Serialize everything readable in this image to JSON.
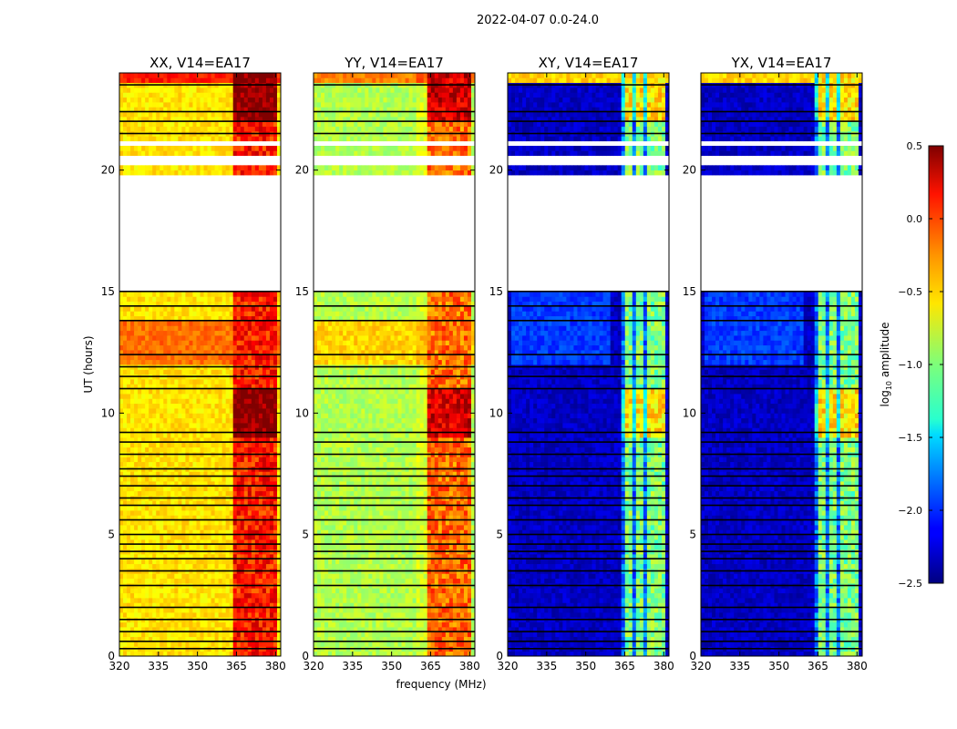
{
  "figure_title": "2022-04-07 0.0-24.0",
  "shared_xlabel": "frequency (MHz)",
  "shared_ylabel": "UT (hours)",
  "colorbar": {
    "label": "log10 amplitude",
    "label_prefix": "log",
    "label_subscript": "10",
    "label_suffix": " amplitude",
    "min": -2.5,
    "max": 0.5,
    "ticks": [
      -2.5,
      -2.0,
      -1.5,
      -1.0,
      -0.5,
      0.0,
      0.5
    ],
    "tick_labels": [
      "−2.5",
      "−2.0",
      "−1.5",
      "−1.0",
      "−0.5",
      "0.0",
      "0.5"
    ],
    "colormap": "jet"
  },
  "chart_data": [
    {
      "type": "heatmap",
      "title": "XX, V14=EA17",
      "xlabel": "frequency (MHz)",
      "ylabel": "UT (hours)",
      "xlim": [
        320,
        382
      ],
      "ylim": [
        0,
        24
      ],
      "xticks": [
        320,
        335,
        350,
        365,
        380
      ],
      "yticks": [
        0,
        5,
        10,
        15,
        20
      ],
      "base_log_amplitude": -0.55,
      "high_band_log_amplitude": 0.05
    },
    {
      "type": "heatmap",
      "title": "YY, V14=EA17",
      "xlabel": "frequency (MHz)",
      "ylabel": "UT (hours)",
      "xlim": [
        320,
        382
      ],
      "ylim": [
        0,
        24
      ],
      "xticks": [
        320,
        335,
        350,
        365,
        380
      ],
      "yticks": [
        0,
        5,
        10,
        15,
        20
      ],
      "base_log_amplitude": -0.85,
      "high_band_log_amplitude": -0.2
    },
    {
      "type": "heatmap",
      "title": "XY, V14=EA17",
      "xlabel": "frequency (MHz)",
      "ylabel": "UT (hours)",
      "xlim": [
        320,
        382
      ],
      "ylim": [
        0,
        24
      ],
      "xticks": [
        320,
        335,
        350,
        365,
        380
      ],
      "yticks": [
        0,
        5,
        10,
        15,
        20
      ],
      "base_log_amplitude": -2.3,
      "high_band_log_amplitude": -1.0
    },
    {
      "type": "heatmap",
      "title": "YX, V14=EA17",
      "xlabel": "frequency (MHz)",
      "ylabel": "UT (hours)",
      "xlim": [
        320,
        382
      ],
      "ylim": [
        0,
        24
      ],
      "xticks": [
        320,
        335,
        350,
        365,
        380
      ],
      "yticks": [
        0,
        5,
        10,
        15,
        20
      ],
      "base_log_amplitude": -2.3,
      "high_band_log_amplitude": -1.0
    }
  ],
  "data_gaps_ut_hours": [
    [
      15.1,
      19.8
    ],
    [
      20.3,
      20.5
    ],
    [
      21.0,
      21.2
    ]
  ],
  "flagged_ut_hours": [
    0.3,
    0.6,
    1.0,
    1.5,
    2.0,
    2.9,
    3.5,
    4.0,
    4.3,
    4.6,
    5.0,
    5.6,
    6.2,
    6.5,
    7.0,
    7.4,
    7.7,
    8.3,
    8.8,
    9.2,
    11.0,
    11.5,
    11.9,
    12.4,
    13.8,
    14.4,
    15.0,
    21.5,
    22.0,
    22.4,
    23.5
  ]
}
